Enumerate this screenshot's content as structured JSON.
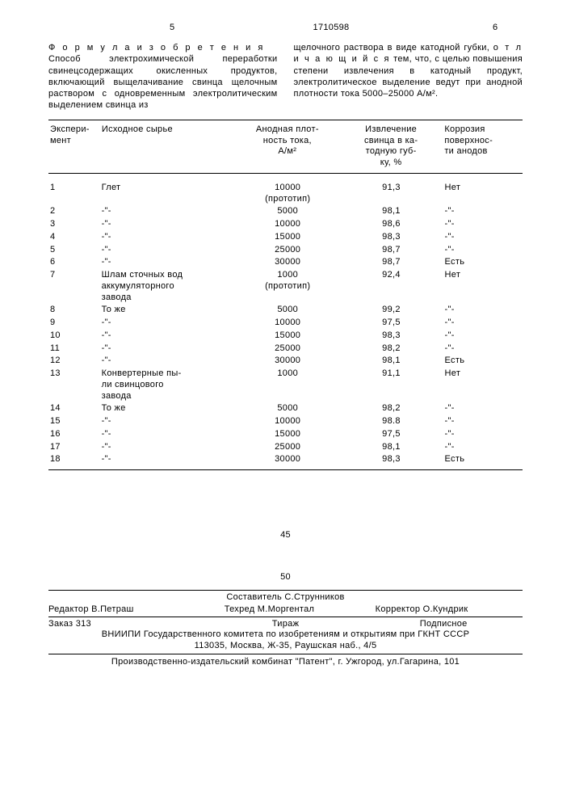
{
  "header": {
    "pageLeft": "5",
    "patentNum": "1710598",
    "pageRight": "6"
  },
  "col1": {
    "title": "Ф о р м у л а  и з о б р е т е н и я",
    "text": "Способ электрохимической переработки свинецсодержащих окисленных продуктов, включающий выщелачивание свинца щелочным раствором с одновременным электролитическим выделением свинца из"
  },
  "col2": {
    "text1": "щелочного раствора в виде катодной губки,",
    "spaced": "о т л и ч а ю щ и й с я",
    "text2": " тем, что, с целью повышения степени извлечения в катодный продукт, электролитическое выделение ведут при анодной плотности тока 5000–25000 А/м²."
  },
  "table": {
    "headers": {
      "c1": "Экспери-\nмент",
      "c2": "Исходное сырье",
      "c3": "Анодная плот-\nность тока,\nА/м²",
      "c4": "Извлечение\nсвинца в ка-\nтодную губ-\nку, %",
      "c5": "Коррозия\nповерхнос-\nти анодов"
    },
    "rows": [
      {
        "n": "1",
        "raw": "Глет",
        "j": "10000",
        "jnote": "(прототип)",
        "e": "91,3",
        "k": "Нет"
      },
      {
        "n": "2",
        "raw": "-\"-",
        "j": "5000",
        "e": "98,1",
        "k": "-\"-"
      },
      {
        "n": "3",
        "raw": "-\"-",
        "j": "10000",
        "e": "98,6",
        "k": "-\"-"
      },
      {
        "n": "4",
        "raw": "-\"-",
        "j": "15000",
        "e": "98,3",
        "k": "-\"-"
      },
      {
        "n": "5",
        "raw": "-\"-",
        "j": "25000",
        "e": "98,7",
        "k": "-\"-"
      },
      {
        "n": "6",
        "raw": "-\"-",
        "j": "30000",
        "e": "98,7",
        "k": "Есть"
      },
      {
        "n": "7",
        "raw": "Шлам сточных вод\nаккумуляторного\nзавода",
        "j": "1000",
        "jnote": "(прототип)",
        "e": "92,4",
        "k": "Нет"
      },
      {
        "n": "8",
        "raw": "То же",
        "j": "5000",
        "e": "99,2",
        "k": "-\"-"
      },
      {
        "n": "9",
        "raw": "-\"-",
        "j": "10000",
        "e": "97,5",
        "k": "-\"-"
      },
      {
        "n": "10",
        "raw": "-\"-",
        "j": "15000",
        "e": "98,3",
        "k": "-\"-"
      },
      {
        "n": "11",
        "raw": "-\"-",
        "j": "25000",
        "e": "98,2",
        "k": "-\"-"
      },
      {
        "n": "12",
        "raw": "-\"-",
        "j": "30000",
        "e": "98,1",
        "k": "Есть"
      },
      {
        "n": "13",
        "raw": "Конвертерные пы-\nли свинцового\nзавода",
        "j": "1000",
        "e": "91,1",
        "k": "Нет"
      },
      {
        "n": "14",
        "raw": "То же",
        "j": "5000",
        "e": "98,2",
        "k": "-\"-"
      },
      {
        "n": "15",
        "raw": "-\"-",
        "j": "10000",
        "e": "98.8",
        "k": "-\"-"
      },
      {
        "n": "16",
        "raw": "-\"-",
        "j": "15000",
        "e": "97,5",
        "k": "-\"-"
      },
      {
        "n": "17",
        "raw": "-\"-",
        "j": "25000",
        "e": "98,1",
        "k": "-\"-"
      },
      {
        "n": "18",
        "raw": "-\"-",
        "j": "30000",
        "e": "98,3",
        "k": "Есть"
      }
    ]
  },
  "midNums": {
    "a": "45",
    "b": "50"
  },
  "footer": {
    "compiler": "Составитель  С.Струнников",
    "editor": "Редактор  В.Петраш",
    "tehred": "Техред М.Моргентал",
    "corrector": "Корректор  О.Кундрик",
    "order": "Заказ 313",
    "tiraj": "Тираж",
    "sub": "Подписное",
    "org1": "ВНИИПИ Государственного комитета по изобретениям и открытиям при ГКНТ СССР",
    "org2": "113035, Москва, Ж-35, Раушская наб., 4/5",
    "bottom": "Производственно-издательский комбинат \"Патент\", г. Ужгород, ул.Гагарина, 101"
  }
}
